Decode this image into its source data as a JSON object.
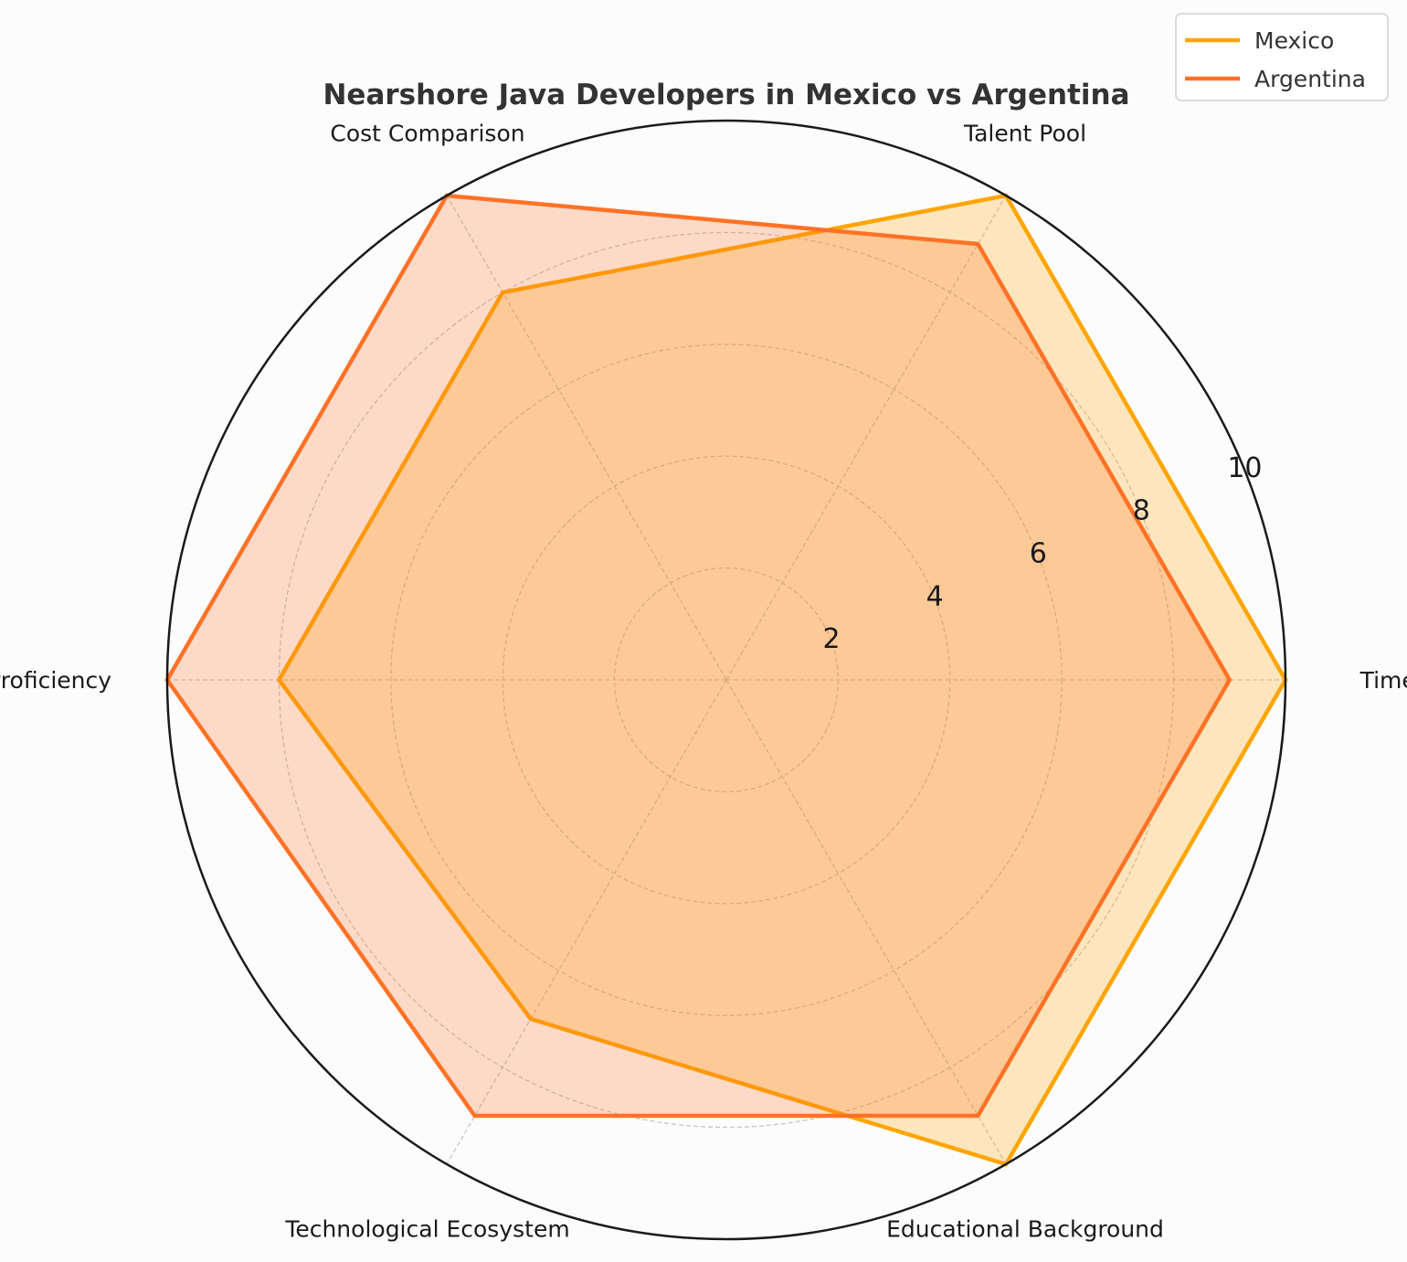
{
  "chart_data": {
    "type": "radar",
    "title": "Nearshore Java Developers in Mexico vs Argentina",
    "categories": [
      "Time Zone",
      "Talent Pool",
      "Cost Comparison",
      "English Proficiency",
      "Technological Ecosystem",
      "Educational Background"
    ],
    "rlim": [
      0,
      10
    ],
    "rticks": [
      "2",
      "4",
      "6",
      "8",
      "10"
    ],
    "grid": true,
    "legend_position": "top-right",
    "series": [
      {
        "name": "Mexico",
        "values": [
          10,
          10,
          8,
          8,
          7,
          10
        ],
        "color": "#FFA500"
      },
      {
        "name": "Argentina",
        "values": [
          9,
          9,
          10,
          10,
          9,
          9
        ],
        "color": "#FF7226"
      }
    ]
  }
}
